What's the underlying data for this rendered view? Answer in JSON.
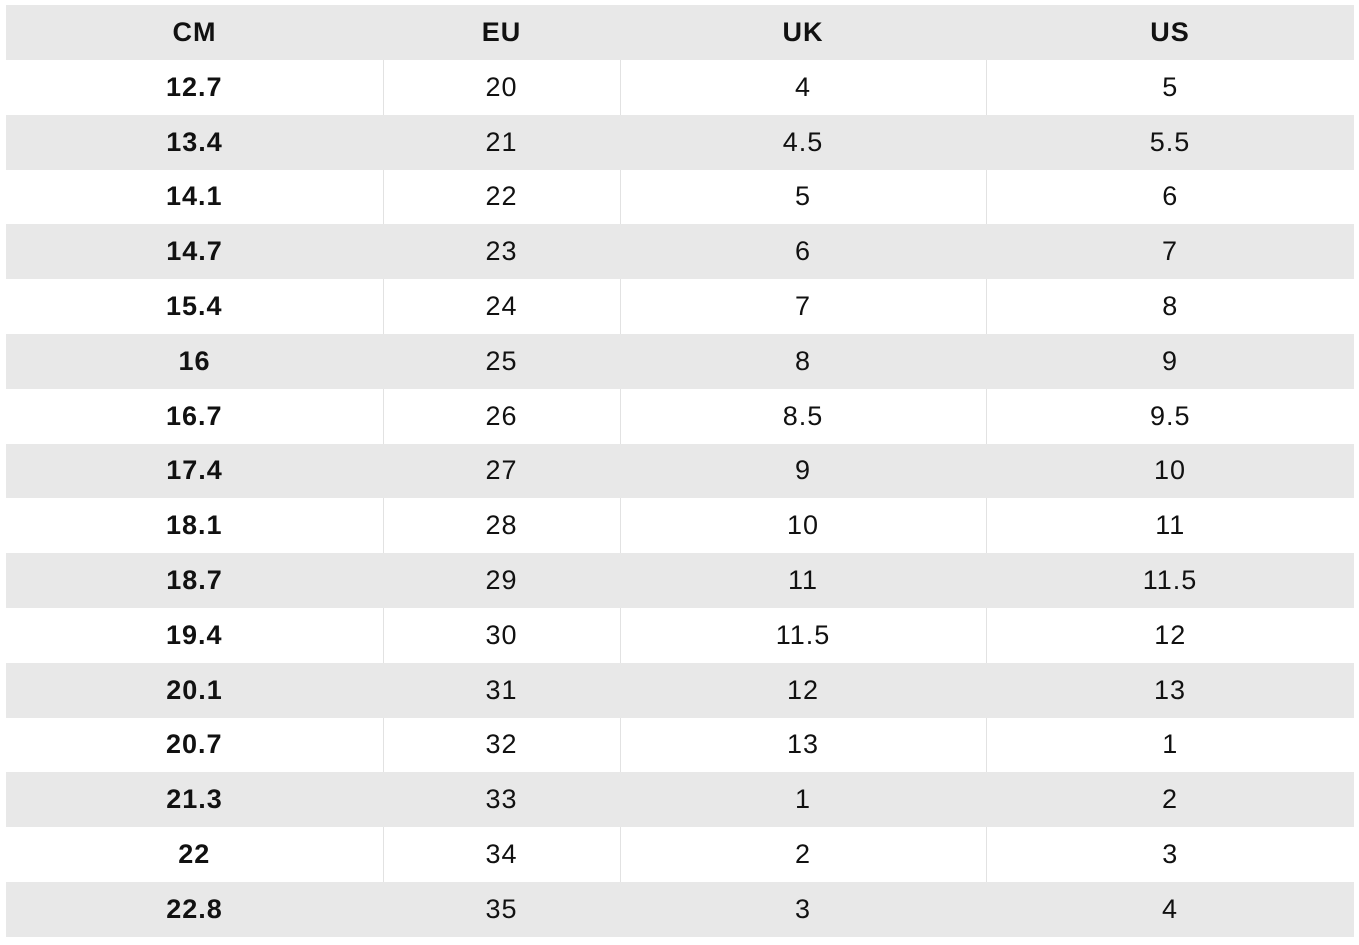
{
  "table": {
    "headers": [
      "CM",
      "EU",
      "UK",
      "US"
    ],
    "rows": [
      [
        "12.7",
        "20",
        "4",
        "5"
      ],
      [
        "13.4",
        "21",
        "4.5",
        "5.5"
      ],
      [
        "14.1",
        "22",
        "5",
        "6"
      ],
      [
        "14.7",
        "23",
        "6",
        "7"
      ],
      [
        "15.4",
        "24",
        "7",
        "8"
      ],
      [
        "16",
        "25",
        "8",
        "9"
      ],
      [
        "16.7",
        "26",
        "8.5",
        "9.5"
      ],
      [
        "17.4",
        "27",
        "9",
        "10"
      ],
      [
        "18.1",
        "28",
        "10",
        "11"
      ],
      [
        "18.7",
        "29",
        "11",
        "11.5"
      ],
      [
        "19.4",
        "30",
        "11.5",
        "12"
      ],
      [
        "20.1",
        "31",
        "12",
        "13"
      ],
      [
        "20.7",
        "32",
        "13",
        "1"
      ],
      [
        "21.3",
        "33",
        "1",
        "2"
      ],
      [
        "22",
        "34",
        "2",
        "3"
      ],
      [
        "22.8",
        "35",
        "3",
        "4"
      ]
    ]
  },
  "colors": {
    "header_bg": "#e8e8e8",
    "stripe_bg": "#e8e8e8",
    "row_bg": "#ffffff",
    "text": "#111111"
  }
}
